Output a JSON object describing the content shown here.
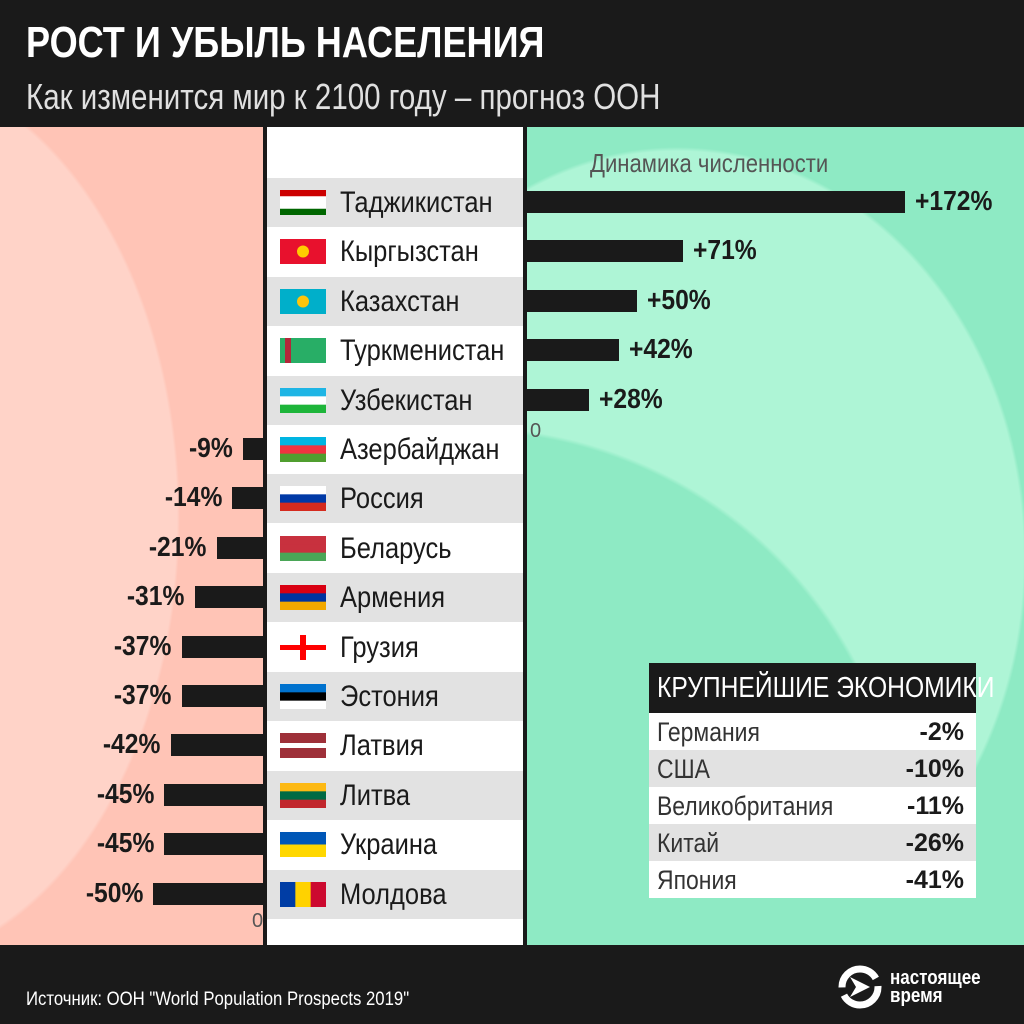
{
  "header": {
    "title": "РОСТ И УБЫЛЬ НАСЕЛЕНИЯ",
    "subtitle": "Как изменится мир к 2100 году – прогноз ООН"
  },
  "chart_data": {
    "type": "bar",
    "orientation": "horizontal-diverging",
    "title": "Динамика численности",
    "unit": "%",
    "zero_label": "0",
    "categories": [
      "Таджикистан",
      "Кыргызстан",
      "Казахстан",
      "Туркменистан",
      "Узбекистан",
      "Азербайджан",
      "Россия",
      "Беларусь",
      "Армения",
      "Грузия",
      "Эстония",
      "Латвия",
      "Литва",
      "Украина",
      "Молдова"
    ],
    "values": [
      172,
      71,
      50,
      42,
      28,
      -9,
      -14,
      -21,
      -31,
      -37,
      -37,
      -42,
      -45,
      -45,
      -50
    ],
    "labels": [
      "+172%",
      "+71%",
      "+50%",
      "+42%",
      "+28%",
      "-9%",
      "-14%",
      "-21%",
      "-31%",
      "-37%",
      "-37%",
      "-42%",
      "-45%",
      "-45%",
      "-50%"
    ],
    "bar_color": "#1a1a1a",
    "positive_bg": "#8eeac4",
    "negative_bg": "#ffc4b6"
  },
  "flags": [
    {
      "icon": "flag-tajikistan",
      "dir": "h",
      "c": [
        "#cc0000",
        "#ffffff",
        "#ffffff",
        "#006600"
      ]
    },
    {
      "icon": "flag-kyrgyzstan",
      "dir": "h",
      "c": [
        "#e8112d"
      ],
      "emblem": "#ffcc00"
    },
    {
      "icon": "flag-kazakhstan",
      "dir": "h",
      "c": [
        "#00afca"
      ],
      "emblem": "#fec50c"
    },
    {
      "icon": "flag-turkmenistan",
      "dir": "h",
      "c": [
        "#28ae66"
      ],
      "stripe": "#b2273a"
    },
    {
      "icon": "flag-uzbekistan",
      "dir": "h",
      "c": [
        "#1eb5e5",
        "#ffffff",
        "#1eb53a"
      ]
    },
    {
      "icon": "flag-azerbaijan",
      "dir": "h",
      "c": [
        "#00b5e2",
        "#ef3340",
        "#509e2f"
      ]
    },
    {
      "icon": "flag-russia",
      "dir": "h",
      "c": [
        "#ffffff",
        "#0039a6",
        "#d52b1e"
      ]
    },
    {
      "icon": "flag-belarus",
      "dir": "h",
      "c": [
        "#c8313e",
        "#c8313e",
        "#4aa657"
      ]
    },
    {
      "icon": "flag-armenia",
      "dir": "h",
      "c": [
        "#d90012",
        "#0033a0",
        "#f2a800"
      ]
    },
    {
      "icon": "flag-georgia",
      "dir": "cross",
      "c": [
        "#ffffff",
        "#ff0000"
      ]
    },
    {
      "icon": "flag-estonia",
      "dir": "h",
      "c": [
        "#0072ce",
        "#000000",
        "#ffffff"
      ]
    },
    {
      "icon": "flag-latvia",
      "dir": "h",
      "c": [
        "#9e3039",
        "#9e3039",
        "#ffffff",
        "#9e3039",
        "#9e3039"
      ]
    },
    {
      "icon": "flag-lithuania",
      "dir": "h",
      "c": [
        "#fdb913",
        "#006a44",
        "#c1272d"
      ]
    },
    {
      "icon": "flag-ukraine",
      "dir": "h",
      "c": [
        "#0057b7",
        "#ffd700"
      ]
    },
    {
      "icon": "flag-moldova",
      "dir": "v",
      "c": [
        "#003da5",
        "#ffd200",
        "#cc092f"
      ]
    }
  ],
  "economies": {
    "title": "КРУПНЕЙШИЕ ЭКОНОМИКИ",
    "rows": [
      {
        "name": "Германия",
        "value": "-2%"
      },
      {
        "name": "США",
        "value": "-10%"
      },
      {
        "name": "Великобритания",
        "value": "-11%"
      },
      {
        "name": "Китай",
        "value": "-26%"
      },
      {
        "name": "Япония",
        "value": "-41%"
      }
    ]
  },
  "footer": {
    "source": "Источник: ООН \"World Population Prospects 2019\"",
    "logo_line1": "настоящее",
    "logo_line2": "время"
  }
}
